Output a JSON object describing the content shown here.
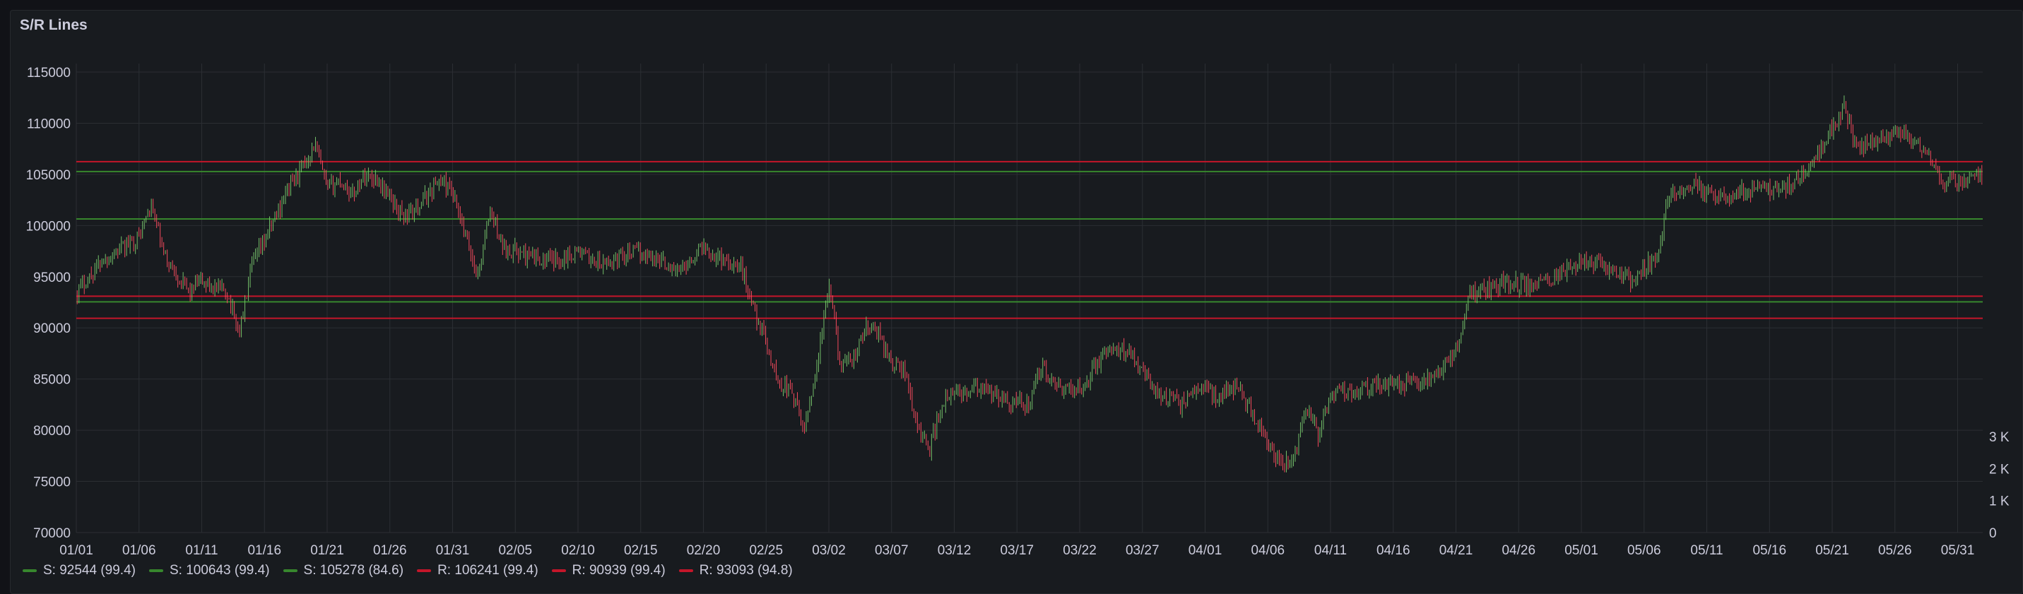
{
  "panel": {
    "title": "S/R Lines"
  },
  "colors": {
    "support": "#37872d",
    "resistance": "#c4162a",
    "up": "#73bf69",
    "down": "#f2495c",
    "grid": "#2b2e33",
    "text": "#ccccdc"
  },
  "chart_data": {
    "type": "candlestick",
    "title": "S/R Lines",
    "xlabel": "",
    "ylabel": "",
    "x_start": "2025-01-01",
    "x_end": "2025-06-02",
    "ylim": [
      70000,
      115000
    ],
    "yticks": [
      "115000",
      "110000",
      "105000",
      "100000",
      "95000",
      "90000",
      "85000",
      "80000",
      "75000",
      "70000"
    ],
    "xticks": [
      "01/01",
      "01/06",
      "01/11",
      "01/16",
      "01/21",
      "01/26",
      "01/31",
      "02/05",
      "02/10",
      "02/15",
      "02/20",
      "02/25",
      "03/02",
      "03/07",
      "03/12",
      "03/17",
      "03/22",
      "03/27",
      "04/01",
      "04/06",
      "04/11",
      "04/16",
      "04/21",
      "04/26",
      "05/01",
      "05/06",
      "05/11",
      "05/16",
      "05/21",
      "05/26",
      "05/31"
    ],
    "y2ticks": [
      "3 K",
      "2 K",
      "1 K",
      "0"
    ],
    "y2lim": [
      0,
      3000
    ],
    "levels": [
      {
        "label": "S: 92544 (99.4)",
        "kind": "support",
        "value": 92544
      },
      {
        "label": "S: 100643 (99.4)",
        "kind": "support",
        "value": 100643
      },
      {
        "label": "S: 105278 (84.6)",
        "kind": "support",
        "value": 105278
      },
      {
        "label": "R: 106241 (99.4)",
        "kind": "resistance",
        "value": 106241
      },
      {
        "label": "R: 90939 (99.4)",
        "kind": "resistance",
        "value": 90939
      },
      {
        "label": "R: 93093 (94.8)",
        "kind": "resistance",
        "value": 93093
      }
    ],
    "close_series": [
      [
        "01/01",
        93500
      ],
      [
        "01/03",
        96500
      ],
      [
        "01/05",
        98000
      ],
      [
        "01/06",
        99000
      ],
      [
        "01/07",
        102000
      ],
      [
        "01/08",
        97000
      ],
      [
        "01/10",
        93500
      ],
      [
        "01/11",
        94500
      ],
      [
        "01/13",
        93500
      ],
      [
        "01/14",
        89500
      ],
      [
        "01/15",
        96000
      ],
      [
        "01/16",
        98500
      ],
      [
        "01/18",
        104000
      ],
      [
        "01/19",
        105500
      ],
      [
        "01/20",
        108000
      ],
      [
        "01/21",
        103500
      ],
      [
        "01/22",
        104500
      ],
      [
        "01/23",
        103000
      ],
      [
        "01/24",
        105000
      ],
      [
        "01/25",
        104500
      ],
      [
        "01/27",
        101000
      ],
      [
        "01/28",
        101500
      ],
      [
        "01/29",
        103000
      ],
      [
        "01/30",
        104500
      ],
      [
        "01/31",
        103000
      ],
      [
        "02/02",
        95000
      ],
      [
        "02/03",
        101500
      ],
      [
        "02/04",
        98000
      ],
      [
        "02/06",
        97000
      ],
      [
        "02/08",
        96500
      ],
      [
        "02/10",
        97500
      ],
      [
        "02/12",
        96000
      ],
      [
        "02/14",
        97500
      ],
      [
        "02/16",
        97000
      ],
      [
        "02/18",
        95500
      ],
      [
        "02/20",
        98000
      ],
      [
        "02/21",
        97000
      ],
      [
        "02/23",
        96000
      ],
      [
        "02/24",
        92000
      ],
      [
        "02/25",
        88500
      ],
      [
        "02/26",
        84500
      ],
      [
        "02/27",
        84000
      ],
      [
        "02/28",
        80000
      ],
      [
        "03/01",
        86000
      ],
      [
        "03/02",
        94000
      ],
      [
        "03/03",
        86000
      ],
      [
        "03/04",
        87000
      ],
      [
        "03/05",
        90000
      ],
      [
        "03/06",
        89500
      ],
      [
        "03/07",
        86500
      ],
      [
        "03/08",
        86000
      ],
      [
        "03/09",
        80500
      ],
      [
        "03/10",
        78000
      ],
      [
        "03/11",
        82500
      ],
      [
        "03/12",
        83500
      ],
      [
        "03/14",
        84000
      ],
      [
        "03/16",
        83000
      ],
      [
        "03/18",
        82500
      ],
      [
        "03/19",
        86500
      ],
      [
        "03/20",
        84000
      ],
      [
        "03/22",
        84000
      ],
      [
        "03/24",
        87500
      ],
      [
        "03/26",
        88000
      ],
      [
        "03/28",
        84000
      ],
      [
        "03/30",
        82500
      ],
      [
        "04/01",
        84500
      ],
      [
        "04/02",
        83000
      ],
      [
        "04/03",
        84500
      ],
      [
        "04/04",
        83500
      ],
      [
        "04/06",
        78500
      ],
      [
        "04/07",
        76500
      ],
      [
        "04/08",
        77000
      ],
      [
        "04/09",
        82500
      ],
      [
        "04/10",
        79500
      ],
      [
        "04/11",
        83500
      ],
      [
        "04/13",
        84000
      ],
      [
        "04/15",
        84500
      ],
      [
        "04/17",
        84500
      ],
      [
        "04/19",
        85000
      ],
      [
        "04/21",
        87500
      ],
      [
        "04/22",
        93500
      ],
      [
        "04/23",
        93500
      ],
      [
        "04/25",
        94500
      ],
      [
        "04/27",
        94000
      ],
      [
        "04/29",
        95000
      ],
      [
        "05/01",
        96500
      ],
      [
        "05/03",
        96000
      ],
      [
        "05/05",
        94500
      ],
      [
        "05/07",
        97000
      ],
      [
        "05/08",
        103000
      ],
      [
        "05/10",
        104000
      ],
      [
        "05/12",
        102500
      ],
      [
        "05/14",
        103500
      ],
      [
        "05/16",
        103500
      ],
      [
        "05/18",
        104000
      ],
      [
        "05/19",
        105500
      ],
      [
        "05/20",
        107000
      ],
      [
        "05/21",
        109500
      ],
      [
        "05/22",
        111500
      ],
      [
        "05/23",
        107500
      ],
      [
        "05/25",
        108500
      ],
      [
        "05/27",
        109000
      ],
      [
        "05/29",
        106000
      ],
      [
        "05/30",
        104000
      ],
      [
        "06/01",
        104500
      ],
      [
        "06/02",
        105000
      ]
    ]
  }
}
